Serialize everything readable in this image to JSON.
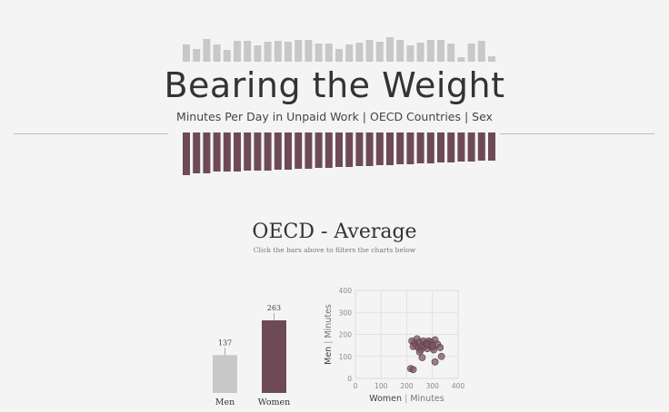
{
  "header": {
    "title": "Bearing the Weight",
    "subtitle": "Minutes Per Day in Unpaid Work | OECD Countries | Sex"
  },
  "section": {
    "title": "OECD - Average",
    "hint": "Click the bars above to filters the charts below"
  },
  "colors": {
    "men": "#c8c8c8",
    "women": "#6e4a57",
    "women_dot": "#7a5563",
    "grid": "#dddddd",
    "axis_text": "#888888",
    "rule": "#bdbdbd"
  },
  "chart_data": [
    {
      "type": "bar",
      "title": "",
      "description_of_role": "",
      "series": [
        {
          "name": "Men",
          "values": [
            19,
            14,
            25,
            19,
            13,
            23,
            23,
            18,
            22,
            23,
            22,
            24,
            24,
            20,
            20,
            14,
            19,
            21,
            24,
            22,
            27,
            24,
            18,
            21,
            24,
            24,
            20,
            5,
            20,
            23,
            6
          ]
        },
        {
          "name": "Women",
          "values": [
            47,
            45,
            45,
            43,
            43,
            43,
            42,
            42,
            42,
            41,
            41,
            40,
            40,
            39,
            39,
            38,
            38,
            37,
            37,
            36,
            36,
            35,
            35,
            34,
            34,
            33,
            33,
            32,
            32,
            31,
            31
          ]
        }
      ],
      "xlabel": "",
      "ylabel": ""
    },
    {
      "type": "bar",
      "categories": [
        "Men",
        "Women"
      ],
      "values": [
        137,
        263
      ],
      "ylim": [
        0,
        263
      ]
    },
    {
      "type": "scatter",
      "xlabel": "Women",
      "xunit": "Minutes",
      "ylabel": "Men",
      "yunit": "Minutes",
      "xlim": [
        0,
        400
      ],
      "ylim": [
        0,
        400
      ],
      "xticks": [
        0,
        100,
        200,
        300,
        400
      ],
      "yticks": [
        0,
        100,
        200,
        300,
        400
      ],
      "grid": true,
      "points": [
        [
          215,
          45
        ],
        [
          225,
          40
        ],
        [
          220,
          170
        ],
        [
          230,
          160
        ],
        [
          235,
          150
        ],
        [
          240,
          180
        ],
        [
          245,
          140
        ],
        [
          250,
          165
        ],
        [
          255,
          130
        ],
        [
          260,
          150
        ],
        [
          265,
          170
        ],
        [
          270,
          145
        ],
        [
          275,
          160
        ],
        [
          280,
          135
        ],
        [
          285,
          170
        ],
        [
          290,
          150
        ],
        [
          295,
          165
        ],
        [
          300,
          140
        ],
        [
          305,
          130
        ],
        [
          310,
          175
        ],
        [
          320,
          155
        ],
        [
          330,
          140
        ],
        [
          335,
          100
        ],
        [
          260,
          95
        ],
        [
          310,
          75
        ],
        [
          225,
          145
        ],
        [
          250,
          120
        ],
        [
          280,
          155
        ],
        [
          300,
          150
        ]
      ]
    }
  ]
}
